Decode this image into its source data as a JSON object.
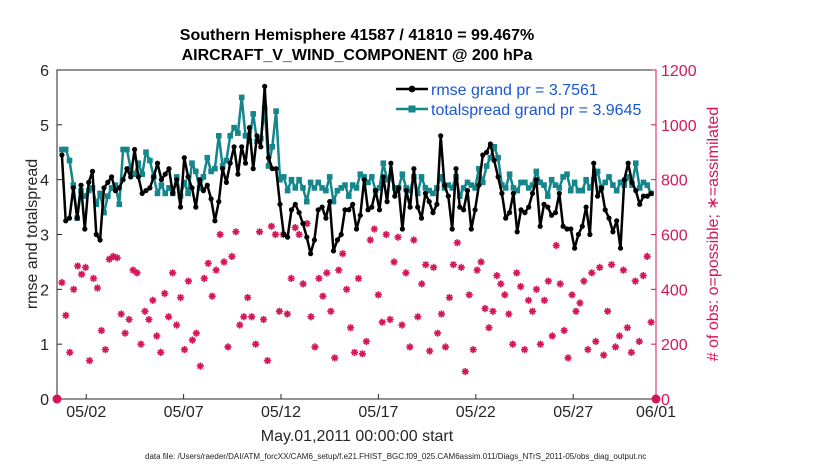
{
  "chart_data": {
    "type": "line",
    "title": "Southern Hemisphere 41587 / 41810 = 99.467%",
    "subtitle": "AIRCRAFT_V_WIND_COMPONENT @ 200 hPa",
    "xlabel": "May.01,2011 00:00:00 start",
    "ylabel": "rmse and totalspread",
    "y2label": "# of obs: o=possible; ∗=assimilated",
    "footer": "data file: /Users/raeder/DAI/ATM_forcXX/CAM6_setup/f.e21.FHIST_BGC.f09_025.CAM6assim.011/Diags_NTrS_2011-05/obs_diag_output.nc",
    "xlim": [
      0.5,
      31.25
    ],
    "ylim": [
      0,
      6
    ],
    "y2lim": [
      0,
      1200
    ],
    "xticks": [
      {
        "x": 2,
        "label": "05/02"
      },
      {
        "x": 7,
        "label": "05/07"
      },
      {
        "x": 12,
        "label": "05/12"
      },
      {
        "x": 17,
        "label": "05/17"
      },
      {
        "x": 22,
        "label": "05/22"
      },
      {
        "x": 27,
        "label": "05/27"
      },
      {
        "x": 32,
        "label": "06/01"
      }
    ],
    "yticks": [
      0,
      1,
      2,
      3,
      4,
      5,
      6
    ],
    "y2ticks": [
      0,
      200,
      400,
      600,
      800,
      1000,
      1200
    ],
    "legend_position": "top-right",
    "series": [
      {
        "name": "rmse",
        "legend": "rmse grand pr = 3.7561",
        "color": "#000000",
        "marker": "*",
        "axis": "left",
        "values": [
          4.45,
          3.25,
          3.3,
          3.85,
          3.3,
          3.9,
          3.1,
          3.95,
          4.15,
          3.0,
          2.9,
          3.85,
          3.95,
          4.05,
          3.8,
          3.85,
          4.0,
          4.2,
          4.05,
          4.55,
          4.05,
          3.75,
          3.8,
          3.85,
          4.05,
          4.3,
          4.0,
          4.1,
          4.2,
          3.75,
          4.0,
          3.5,
          4.4,
          4.05,
          3.85,
          3.5,
          4.0,
          3.8,
          3.9,
          3.65,
          3.25,
          3.6,
          4.2,
          3.95,
          4.3,
          4.6,
          4.1,
          4.6,
          4.3,
          4.95,
          4.2,
          4.8,
          4.6,
          5.7,
          4.4,
          4.2,
          4.2,
          3.55,
          3.0,
          2.95,
          3.45,
          3.55,
          3.4,
          3.2,
          2.95,
          2.65,
          2.9,
          3.45,
          3.5,
          3.3,
          3.6,
          2.7,
          2.9,
          3.0,
          3.45,
          3.45,
          3.55,
          3.1,
          3.35,
          4.0,
          3.45,
          3.5,
          3.8,
          3.45,
          4.05,
          3.6,
          4.3,
          3.7,
          3.85,
          3.1,
          3.8,
          3.5,
          4.2,
          3.5,
          3.3,
          3.75,
          3.6,
          3.4,
          3.55,
          4.8,
          3.9,
          3.7,
          3.1,
          4.2,
          3.5,
          3.45,
          3.8,
          3.1,
          3.45,
          3.9,
          4.45,
          4.5,
          4.65,
          4.35,
          4.05,
          3.75,
          3.3,
          3.4,
          3.75,
          3.05,
          3.45,
          3.4,
          3.5,
          3.75,
          4.0,
          3.15,
          3.55,
          3.5,
          3.35,
          3.4,
          3.75,
          3.15,
          3.1,
          3.1,
          2.75,
          3.0,
          3.15,
          3.5,
          3.0,
          4.3,
          3.7,
          3.85,
          3.45,
          3.3,
          3.05,
          3.25,
          2.75,
          4.0,
          4.3,
          3.95,
          3.8,
          3.55,
          3.7,
          3.7,
          3.75
        ]
      },
      {
        "name": "totalspread",
        "legend": "totalspread grand pr = 3.9645",
        "color": "#14868c",
        "marker": "square",
        "axis": "left",
        "values": [
          4.55,
          4.55,
          4.35,
          3.9,
          3.3,
          3.8,
          3.7,
          3.8,
          3.85,
          3.55,
          3.75,
          3.4,
          3.7,
          3.85,
          3.9,
          3.55,
          4.55,
          4.55,
          4.2,
          4.1,
          4.3,
          4.1,
          4.5,
          4.35,
          4.05,
          3.75,
          3.9,
          3.75,
          3.85,
          3.75,
          4.05,
          3.7,
          3.95,
          3.75,
          4.3,
          4.15,
          3.85,
          4.05,
          4.4,
          4.15,
          4.2,
          4.8,
          4.25,
          4.35,
          4.8,
          4.95,
          4.85,
          5.5,
          4.8,
          4.7,
          5.2,
          4.7,
          4.75,
          5.3,
          4.25,
          4.6,
          5.25,
          4.0,
          4.05,
          3.8,
          4.0,
          3.85,
          4.0,
          3.85,
          3.6,
          3.95,
          3.85,
          3.95,
          3.85,
          3.8,
          4.05,
          3.6,
          3.8,
          3.85,
          3.9,
          3.7,
          3.9,
          3.85,
          4.1,
          4.05,
          3.95,
          4.05,
          3.8,
          3.85,
          4.3,
          4.0,
          4.05,
          3.85,
          3.85,
          4.1,
          3.85,
          3.8,
          4.05,
          3.75,
          4.05,
          3.85,
          3.8,
          3.75,
          3.85,
          4.05,
          3.85,
          3.9,
          3.85,
          4.05,
          3.7,
          3.85,
          3.95,
          3.9,
          3.85,
          4.2,
          3.95,
          4.25,
          4.4,
          4.6,
          4.4,
          3.9,
          3.85,
          4.1,
          3.85,
          3.8,
          3.95,
          3.95,
          3.85,
          3.9,
          4.15,
          3.95,
          3.9,
          3.7,
          4.0,
          3.9,
          3.85,
          4.05,
          4.1,
          3.8,
          3.95,
          3.8,
          3.8,
          4.0,
          3.85,
          4.0,
          4.15,
          3.85,
          3.95,
          4.05,
          3.9,
          3.8,
          3.95,
          3.9,
          4.05,
          3.9,
          4.3,
          3.85,
          3.95,
          3.9,
          3.75
        ]
      },
      {
        "name": "obs_assimilated",
        "color": "#d41659",
        "marker": "*",
        "axis": "right",
        "values": [
          425,
          305,
          170,
          400,
          485,
          455,
          480,
          140,
          440,
          405,
          250,
          180,
          510,
          520,
          515,
          310,
          240,
          290,
          470,
          460,
          200,
          320,
          290,
          360,
          230,
          170,
          385,
          300,
          460,
          270,
          370,
          180,
          430,
          215,
          240,
          120,
          440,
          495,
          375,
          470,
          600,
          500,
          190,
          520,
          610,
          270,
          300,
          370,
          300,
          200,
          610,
          290,
          140,
          630,
          600,
          320,
          600,
          310,
          440,
          625,
          600,
          420,
          640,
          300,
          190,
          440,
          375,
          460,
          320,
          150,
          470,
          530,
          400,
          260,
          170,
          440,
          165,
          210,
          580,
          620,
          380,
          280,
          600,
          290,
          500,
          590,
          270,
          460,
          190,
          580,
          300,
          420,
          490,
          175,
          480,
          240,
          310,
          190,
          370,
          490,
          570,
          480,
          100,
          380,
          180,
          470,
          500,
          330,
          260,
          320,
          450,
          420,
          380,
          310,
          200,
          460,
          410,
          180,
          360,
          320,
          400,
          200,
          360,
          430,
          230,
          560,
          420,
          250,
          150,
          380,
          320,
          350,
          430,
          180,
          460,
          210,
          480,
          160,
          320,
          490,
          190,
          230,
          470,
          260,
          170,
          430,
          210,
          450,
          520,
          280
        ]
      }
    ],
    "obs_possible_endpoints": [
      {
        "x": 0.5,
        "value": 0
      },
      {
        "x": 31.25,
        "value": 0
      }
    ]
  },
  "legend": {
    "rmse_label": "rmse grand pr = 3.7561",
    "spread_label": "totalspread grand pr = 3.9645"
  }
}
